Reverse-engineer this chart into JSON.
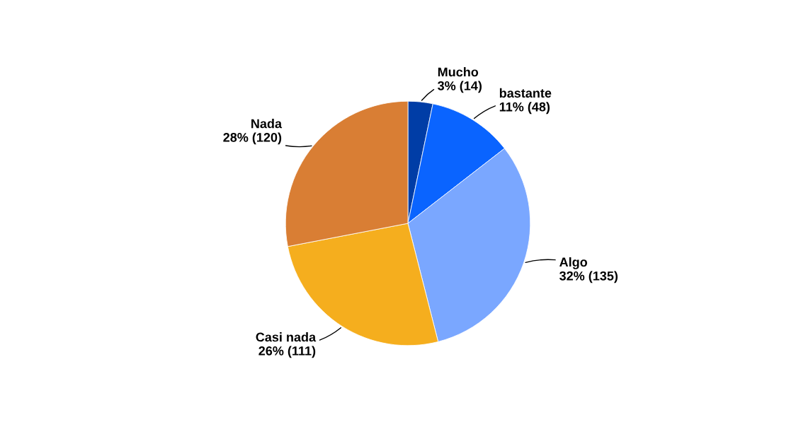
{
  "chart_data": {
    "type": "pie",
    "categories": [
      "Mucho",
      "bastante",
      "Algo",
      "Casi nada",
      "Nada"
    ],
    "values": [
      14,
      48,
      135,
      111,
      120
    ],
    "value_labels": [
      "3% (14)",
      "11% (48)",
      "32% (135)",
      "26% (111)",
      "28% (120)"
    ],
    "colors": [
      "#003da6",
      "#0a64ff",
      "#7aa7ff",
      "#f5ae1e",
      "#d97e34"
    ],
    "legend": false
  }
}
